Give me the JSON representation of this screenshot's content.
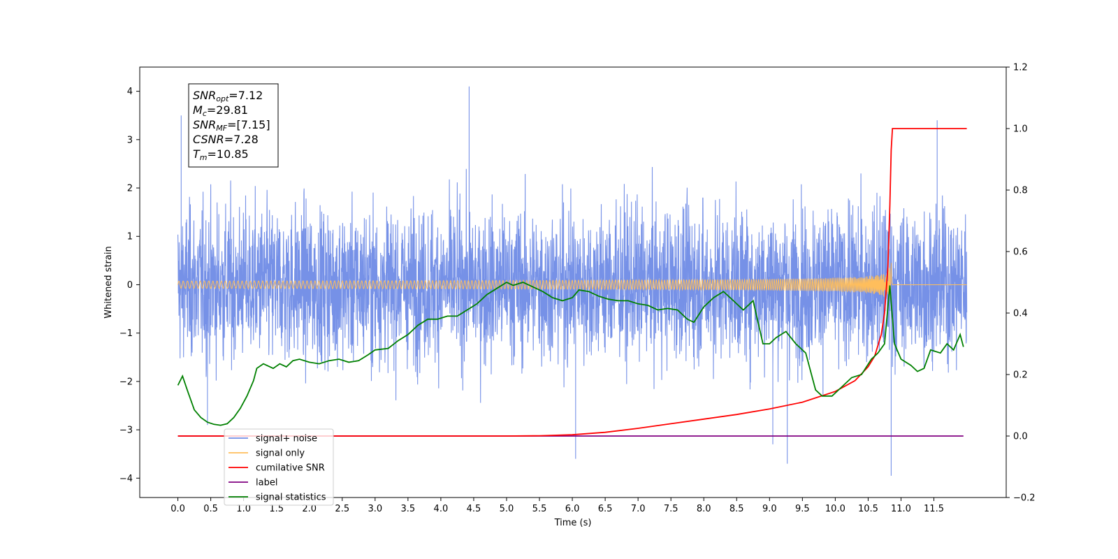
{
  "chart_data": {
    "type": "line",
    "xlabel": "Time (s)",
    "ylabel": "Whitened strain",
    "xlim": [
      -0.58,
      12.6
    ],
    "ylim": [
      -4.4,
      4.5
    ],
    "ylim_right": [
      -0.2,
      1.2
    ],
    "xticks": [
      "0.0",
      "0.5",
      "1.0",
      "1.5",
      "2.0",
      "2.5",
      "3.0",
      "3.5",
      "4.0",
      "4.5",
      "5.0",
      "5.5",
      "6.0",
      "6.5",
      "7.0",
      "7.5",
      "8.0",
      "8.5",
      "9.0",
      "9.5",
      "10.0",
      "10.5",
      "11.0",
      "11.5"
    ],
    "yticks_left": [
      "4",
      "3",
      "2",
      "1",
      "0",
      "−1",
      "−2",
      "−3",
      "−4"
    ],
    "yticks_right": [
      "1.2",
      "1.0",
      "0.8",
      "0.6",
      "0.4",
      "0.2",
      "0.0",
      "−0.2"
    ],
    "annotation": {
      "lines": [
        {
          "main": "SNR",
          "sub": "opt",
          "rest": "=7.12"
        },
        {
          "main": "M",
          "sub": "c",
          "rest": "=29.81"
        },
        {
          "main": "SNR",
          "sub": "MF",
          "rest": "=[7.15]"
        },
        {
          "main": "CSNR",
          "sub": "",
          "rest": "=7.28"
        },
        {
          "main": "T",
          "sub": "m",
          "rest": "=10.85"
        }
      ]
    },
    "legend": {
      "position": "lower-left",
      "entries": [
        {
          "label": "signal+ noise",
          "color": "#6f8be6"
        },
        {
          "label": "signal only",
          "color": "#ffbe5c"
        },
        {
          "label": "cumilative SNR",
          "color": "#ff0000"
        },
        {
          "label": "label",
          "color": "#800080"
        },
        {
          "label": "signal statistics",
          "color": "#008000"
        }
      ]
    },
    "series": [
      {
        "name": "signal+ noise",
        "axis": "left",
        "color": "#6f8be6",
        "description_points": {
          "x_range": [
            0.0,
            12.0
          ],
          "amplitude_typical": 1.6,
          "notable_spikes": [
            [
              0.05,
              3.5
            ],
            [
              0.45,
              -2.9
            ],
            [
              4.43,
              4.1
            ],
            [
              6.05,
              -3.6
            ],
            [
              9.05,
              -3.3
            ],
            [
              9.27,
              -3.7
            ],
            [
              10.85,
              -3.95
            ],
            [
              11.55,
              3.4
            ]
          ]
        }
      },
      {
        "name": "signal only",
        "axis": "left",
        "color": "#ffbe5c",
        "chirp": {
          "t_merge": 10.85,
          "peak_amplitude": 0.55
        }
      },
      {
        "name": "cumilative SNR",
        "axis": "right",
        "color": "#ff0000",
        "x": [
          0.0,
          5.0,
          5.5,
          6.0,
          6.5,
          7.0,
          7.5,
          8.0,
          8.5,
          9.0,
          9.5,
          10.0,
          10.3,
          10.5,
          10.6,
          10.7,
          10.75,
          10.8,
          10.83,
          10.85,
          10.87,
          12.0
        ],
        "y": [
          0.0,
          0.0,
          0.001,
          0.004,
          0.012,
          0.025,
          0.04,
          0.055,
          0.07,
          0.088,
          0.11,
          0.145,
          0.18,
          0.225,
          0.26,
          0.33,
          0.4,
          0.55,
          0.75,
          0.93,
          1.0,
          1.0
        ]
      },
      {
        "name": "label",
        "axis": "right",
        "color": "#800080",
        "x": [
          0.0,
          11.95
        ],
        "y": [
          0.0,
          0.0
        ]
      },
      {
        "name": "signal statistics",
        "axis": "right",
        "color": "#008000",
        "x": [
          0.0,
          0.07,
          0.15,
          0.25,
          0.35,
          0.45,
          0.55,
          0.65,
          0.75,
          0.85,
          0.95,
          1.05,
          1.15,
          1.2,
          1.3,
          1.45,
          1.55,
          1.65,
          1.75,
          1.85,
          2.0,
          2.15,
          2.3,
          2.45,
          2.6,
          2.75,
          2.9,
          3.0,
          3.2,
          3.35,
          3.5,
          3.65,
          3.8,
          3.95,
          4.1,
          4.25,
          4.4,
          4.55,
          4.7,
          4.85,
          5.0,
          5.1,
          5.25,
          5.4,
          5.55,
          5.7,
          5.85,
          6.0,
          6.1,
          6.25,
          6.4,
          6.55,
          6.7,
          6.85,
          7.0,
          7.15,
          7.3,
          7.45,
          7.6,
          7.75,
          7.85,
          8.0,
          8.15,
          8.3,
          8.45,
          8.6,
          8.75,
          8.9,
          9.0,
          9.1,
          9.25,
          9.4,
          9.55,
          9.7,
          9.8,
          9.95,
          10.1,
          10.25,
          10.4,
          10.55,
          10.65,
          10.75,
          10.83,
          10.9,
          11.0,
          11.15,
          11.25,
          11.35,
          11.45,
          11.6,
          11.7,
          11.8,
          11.9,
          11.95
        ],
        "y": [
          0.165,
          0.195,
          0.145,
          0.085,
          0.06,
          0.045,
          0.038,
          0.035,
          0.04,
          0.06,
          0.09,
          0.13,
          0.18,
          0.22,
          0.235,
          0.22,
          0.235,
          0.225,
          0.245,
          0.25,
          0.24,
          0.235,
          0.245,
          0.25,
          0.24,
          0.245,
          0.265,
          0.28,
          0.285,
          0.31,
          0.33,
          0.36,
          0.38,
          0.38,
          0.39,
          0.39,
          0.41,
          0.43,
          0.46,
          0.48,
          0.5,
          0.49,
          0.5,
          0.485,
          0.47,
          0.45,
          0.44,
          0.45,
          0.475,
          0.47,
          0.455,
          0.445,
          0.44,
          0.44,
          0.43,
          0.425,
          0.41,
          0.415,
          0.41,
          0.38,
          0.37,
          0.42,
          0.45,
          0.47,
          0.44,
          0.41,
          0.44,
          0.3,
          0.3,
          0.32,
          0.34,
          0.3,
          0.27,
          0.15,
          0.13,
          0.13,
          0.16,
          0.19,
          0.2,
          0.25,
          0.27,
          0.3,
          0.49,
          0.3,
          0.25,
          0.23,
          0.21,
          0.22,
          0.28,
          0.27,
          0.3,
          0.28,
          0.33,
          0.29
        ]
      }
    ]
  }
}
